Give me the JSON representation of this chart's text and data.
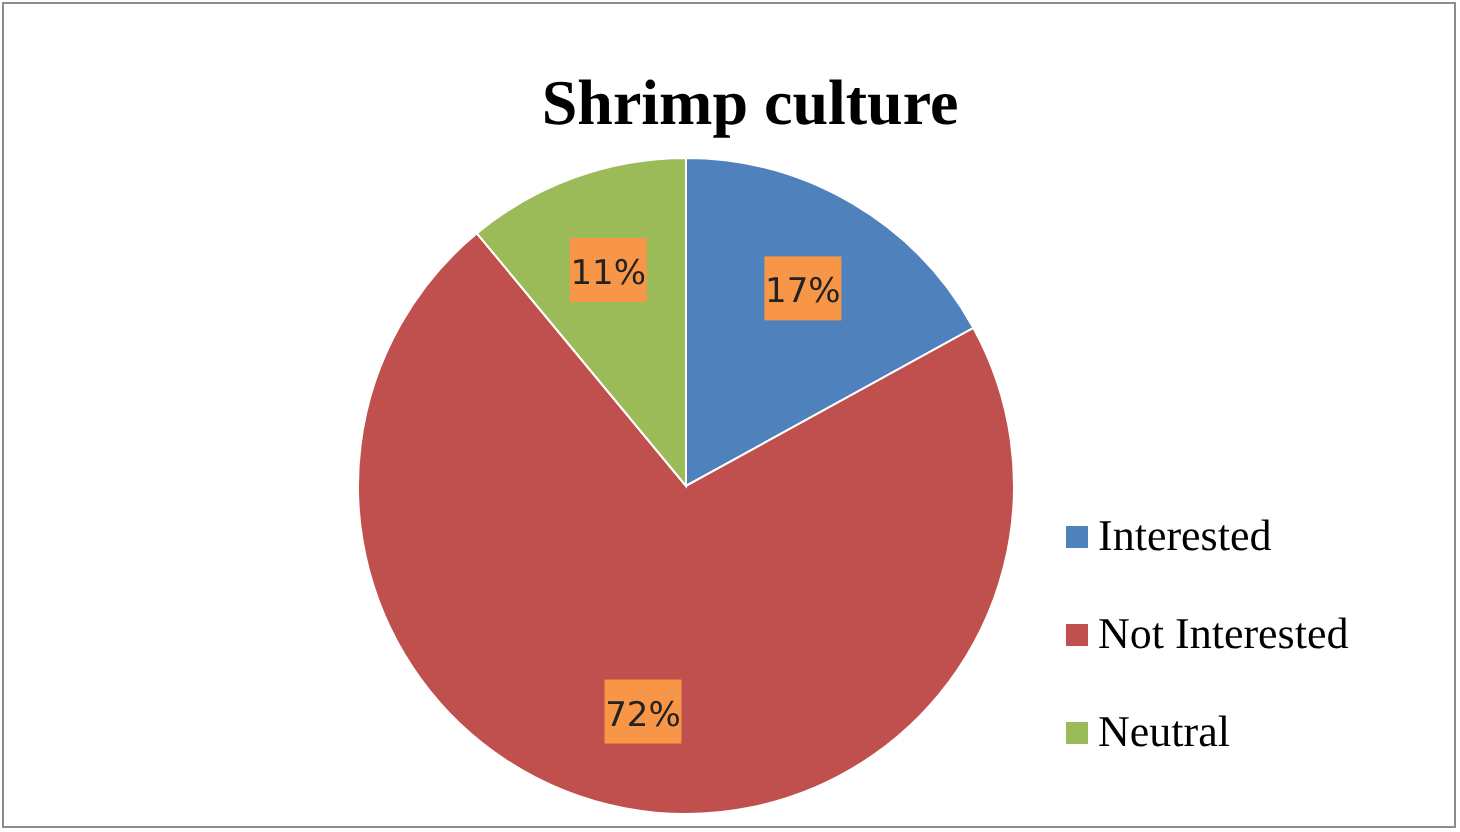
{
  "chart_data": {
    "type": "pie",
    "title": "Shrimp culture",
    "categories": [
      "Interested",
      "Not Interested",
      "Neutral"
    ],
    "values": [
      17,
      72,
      11
    ],
    "colors": [
      "#4f81bd",
      "#c0504d",
      "#9bbb59"
    ],
    "value_labels": [
      "17%",
      "72%",
      "11%"
    ],
    "legend": "right"
  }
}
